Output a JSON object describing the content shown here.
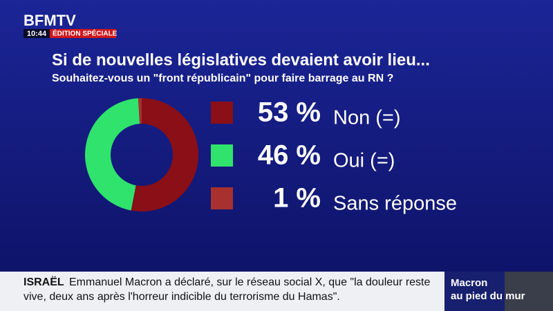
{
  "channel": {
    "logo": "BFMTV",
    "time": "10:44",
    "edition": "ÉDITION SPÉCIALE"
  },
  "chart_data": {
    "type": "pie",
    "donut": true,
    "title": "Si de nouvelles législatives devaient avoir lieu...",
    "subtitle": "Souhaitez-vous un \"front républicain\" pour faire barrage au RN ?",
    "categories": [
      "Non (=)",
      "Oui (=)",
      "Sans réponse"
    ],
    "values": [
      53,
      46,
      1
    ],
    "value_labels": [
      "53 %",
      "46 %",
      "1 %"
    ],
    "colors": [
      "#8a0f17",
      "#2fe36c",
      "#a8302f"
    ]
  },
  "ticker": {
    "tag": "ISRAËL",
    "line1": "Emmanuel Macron a déclaré, sur le réseau social X, que \"la douleur reste",
    "line2": "vive, deux ans après l'horreur indicible du terrorisme du Hamas\"."
  },
  "sidebar": {
    "line1": "Macron",
    "line2": "au pied du mur"
  }
}
